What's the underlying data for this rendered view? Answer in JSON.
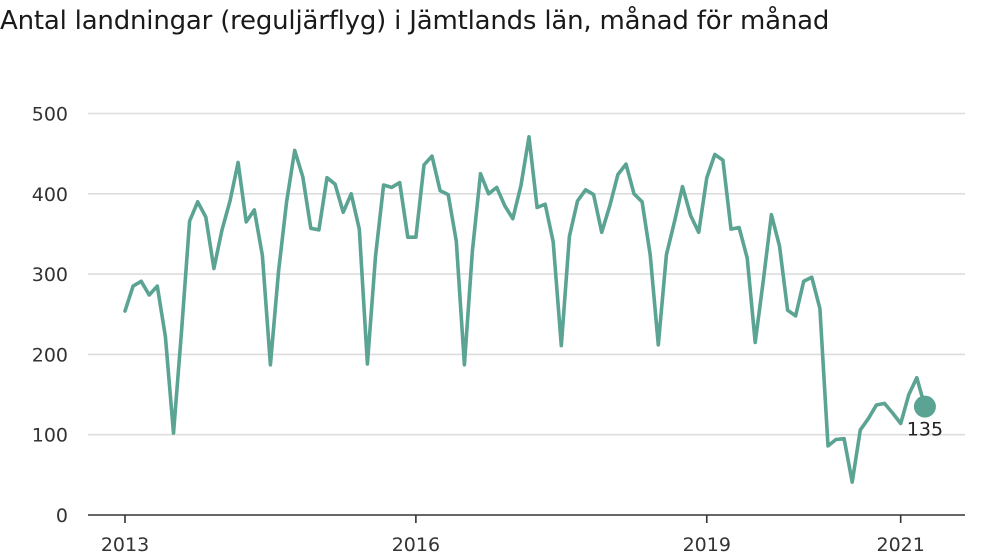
{
  "title": "Antal landningar (reguljärflyg) i Jämtlands län, månad för månad",
  "colors": {
    "line": "#5ba393",
    "grid": "#dddddd",
    "axis": "#333333"
  },
  "chart_data": {
    "type": "line",
    "title": "Antal landningar (reguljärflyg) i Jämtlands län, månad för månad",
    "xlabel": "",
    "ylabel": "",
    "ylim": [
      0,
      500
    ],
    "yticks": [
      0,
      100,
      200,
      300,
      400,
      500
    ],
    "xticks": [
      {
        "value": 0,
        "label": "2013"
      },
      {
        "value": 36,
        "label": "2016"
      },
      {
        "value": 72,
        "label": "2019"
      },
      {
        "value": 96,
        "label": "2021"
      }
    ],
    "grid": true,
    "last_value_label": "135",
    "series": [
      {
        "values": [
          254,
          285,
          291,
          274,
          285,
          222,
          102,
          230,
          366,
          390,
          371,
          307,
          355,
          391,
          439,
          365,
          380,
          323,
          187,
          303,
          390,
          454,
          421,
          357,
          355,
          420,
          412,
          377,
          400,
          356,
          188,
          322,
          411,
          408,
          414,
          346,
          346,
          436,
          447,
          404,
          399,
          341,
          187,
          329,
          425,
          400,
          408,
          385,
          369,
          410,
          471,
          383,
          387,
          340,
          211,
          347,
          391,
          405,
          399,
          352,
          385,
          424,
          437,
          400,
          390,
          324,
          212,
          324,
          365,
          409,
          373,
          352,
          420,
          449,
          442,
          356,
          358,
          320,
          215,
          292,
          374,
          335,
          255,
          248,
          291,
          296,
          257,
          86,
          94,
          95,
          41,
          106,
          120,
          137,
          139,
          127,
          114,
          150,
          171,
          135
        ]
      }
    ]
  }
}
